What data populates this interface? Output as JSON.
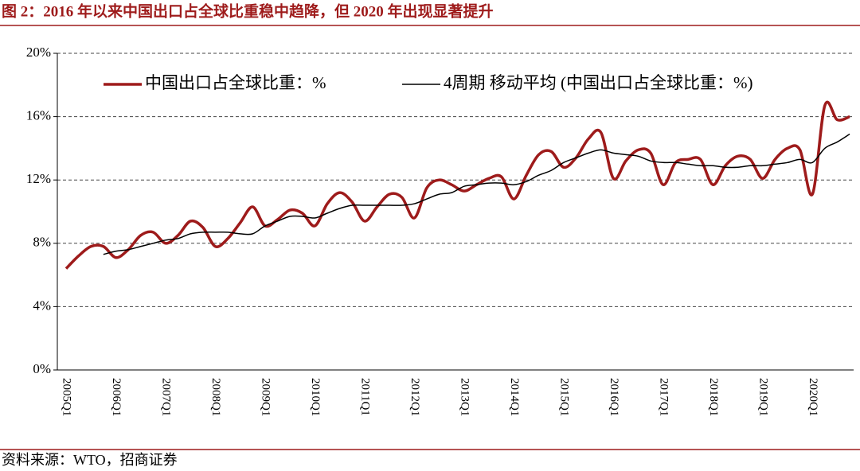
{
  "chart_data": {
    "type": "line",
    "title": "图 2：2016 年以来中国出口占全球比重稳中趋降，但 2020 年出现显著提升",
    "source": "资料来源：WTO，招商证券",
    "categories": [
      "2005Q1",
      null,
      null,
      null,
      "2006Q1",
      null,
      null,
      null,
      "2007Q1",
      null,
      null,
      null,
      "2008Q1",
      null,
      null,
      null,
      "2009Q1",
      null,
      null,
      null,
      "2010Q1",
      null,
      null,
      null,
      "2011Q1",
      null,
      null,
      null,
      "2012Q1",
      null,
      null,
      null,
      "2013Q1",
      null,
      null,
      null,
      "2014Q1",
      null,
      null,
      null,
      "2015Q1",
      null,
      null,
      null,
      "2016Q1",
      null,
      null,
      null,
      "2017Q1",
      null,
      null,
      null,
      "2018Q1",
      null,
      null,
      null,
      "2019Q1",
      null,
      null,
      null,
      "2020Q1",
      null,
      null,
      null
    ],
    "series": [
      {
        "name": "中国出口占全球比重：%",
        "color": "#9e1b1b",
        "width": 3.5,
        "values": [
          6.4,
          7.2,
          7.8,
          7.8,
          7.1,
          7.6,
          8.5,
          8.7,
          8.0,
          8.5,
          9.4,
          9.0,
          7.8,
          8.3,
          9.3,
          10.3,
          9.1,
          9.5,
          10.1,
          9.9,
          9.1,
          10.5,
          11.2,
          10.6,
          9.4,
          10.3,
          11.1,
          10.9,
          9.6,
          11.5,
          12.0,
          11.7,
          11.3,
          11.7,
          12.1,
          12.2,
          10.8,
          12.3,
          13.6,
          13.8,
          12.8,
          13.4,
          14.6,
          15.0,
          12.1,
          13.2,
          13.9,
          13.7,
          11.7,
          13.1,
          13.3,
          13.3,
          11.7,
          12.9,
          13.5,
          13.3,
          12.1,
          13.3,
          14.0,
          13.9,
          11.1,
          16.7,
          15.8,
          16.0
        ]
      },
      {
        "name": "4周期 移动平均 (中国出口占全球比重：%)",
        "color": "#000000",
        "width": 1.5,
        "values": [
          null,
          null,
          null,
          7.3,
          7.5,
          7.6,
          7.8,
          8.0,
          8.2,
          8.3,
          8.6,
          8.7,
          8.7,
          8.7,
          8.6,
          8.6,
          9.1,
          9.4,
          9.7,
          9.7,
          9.6,
          9.9,
          10.2,
          10.4,
          10.4,
          10.4,
          10.4,
          10.4,
          10.5,
          10.8,
          11.1,
          11.2,
          11.6,
          11.7,
          11.8,
          11.8,
          11.7,
          11.9,
          12.3,
          12.6,
          13.1,
          13.4,
          13.7,
          13.9,
          13.7,
          13.6,
          13.5,
          13.2,
          13.1,
          13.1,
          13.0,
          12.9,
          12.9,
          12.8,
          12.8,
          12.9,
          12.9,
          13.0,
          13.1,
          13.3,
          13.1,
          14.0,
          14.4,
          14.9
        ]
      }
    ],
    "ylim": [
      0,
      20
    ],
    "yticks": [
      {
        "value": 0,
        "label": "0%"
      },
      {
        "value": 4,
        "label": "4%"
      },
      {
        "value": 8,
        "label": "8%"
      },
      {
        "value": 12,
        "label": "12%"
      },
      {
        "value": 16,
        "label": "16%"
      },
      {
        "value": 20,
        "label": "20%"
      }
    ],
    "grid": true
  }
}
